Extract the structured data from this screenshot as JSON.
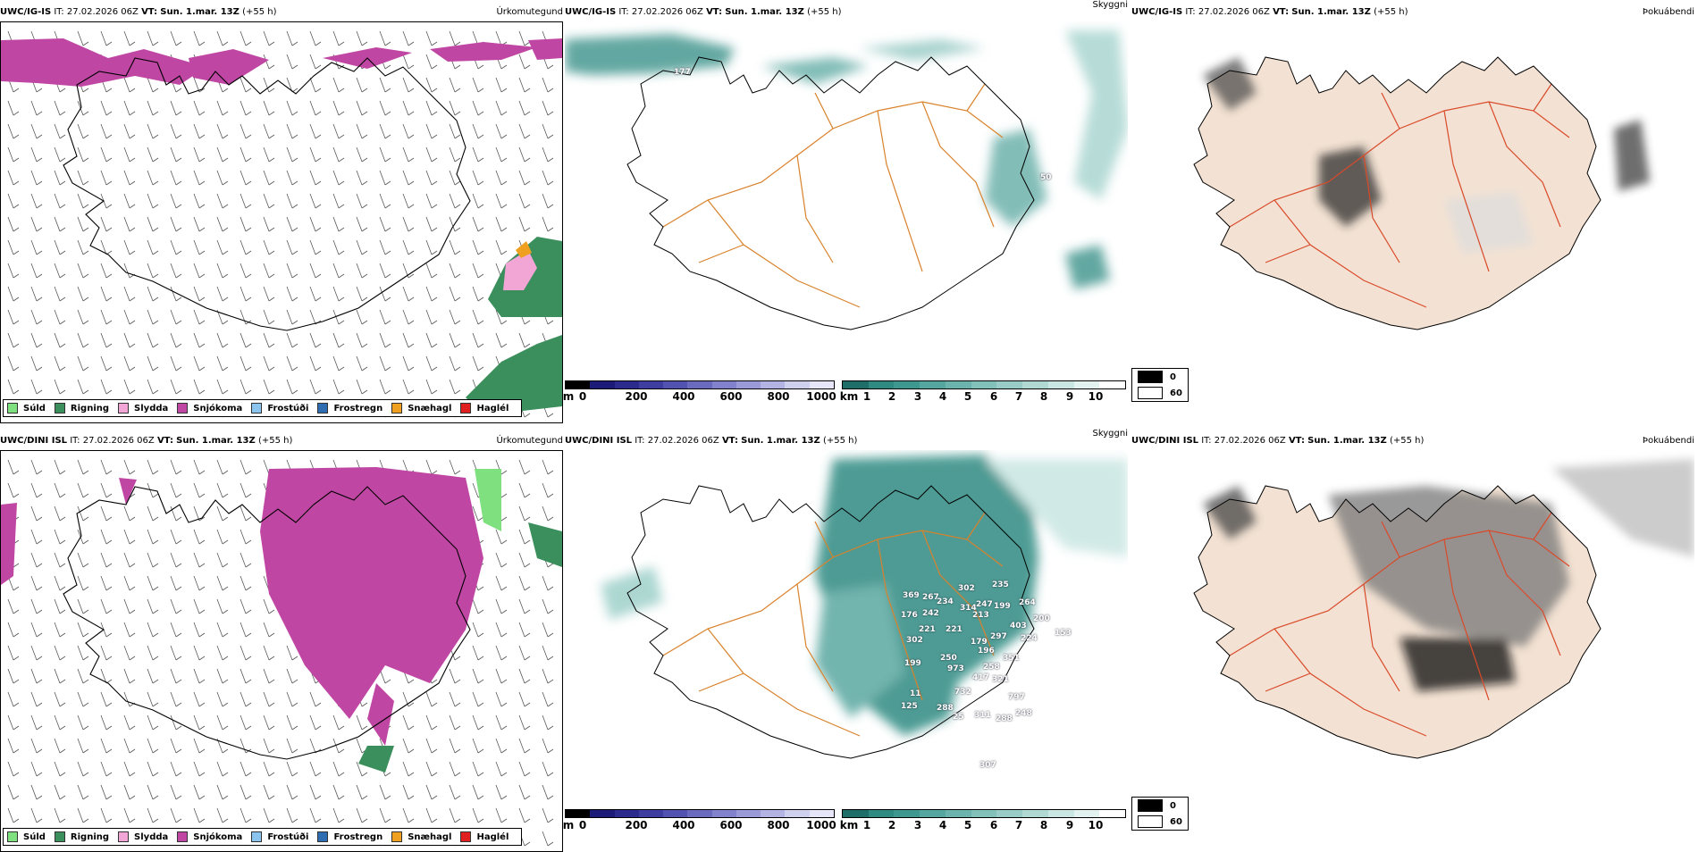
{
  "colors": {
    "sudd": "#7ee07e",
    "rigning": "#3a8f5c",
    "slydda": "#f2a6d6",
    "snjokoma": "#c046a4",
    "frostudi": "#8cc4f0",
    "frostregn": "#2f6db3",
    "snaehagl": "#f0a020",
    "hagel": "#e02020",
    "land_tan": "#f3e2d3",
    "roads_orange": "#d9822b",
    "roads_red": "#d94a2a",
    "rivers_blue": "#6f8ee8",
    "teal": "#2f8a82"
  },
  "rows": [
    {
      "model": "UWC/IG-IS",
      "it": "IT: 27.02.2026 06Z",
      "vt_label": "VT:",
      "vt_value": "Sun. 1.mar. 13Z",
      "lead": "(+55 h)",
      "panels": [
        "Úrkomutegund",
        "Skyggni",
        "Þokuábendi"
      ],
      "labels": [
        {
          "v": "177"
        },
        {
          "v": "50"
        }
      ]
    },
    {
      "model": "UWC/DINI ISL",
      "it": "IT: 27.02.2026 06Z",
      "vt_label": "VT:",
      "vt_value": "Sun. 1.mar. 13Z",
      "lead": "(+55 h)",
      "panels": [
        "Úrkomutegund",
        "Skyggni",
        "Þokuábendi"
      ],
      "labels": [
        {
          "v": "369"
        },
        {
          "v": "267"
        },
        {
          "v": "234"
        },
        {
          "v": "302"
        },
        {
          "v": "235"
        },
        {
          "v": "264"
        },
        {
          "v": "176"
        },
        {
          "v": "242"
        },
        {
          "v": "314"
        },
        {
          "v": "247"
        },
        {
          "v": "199"
        },
        {
          "v": "213"
        },
        {
          "v": "221"
        },
        {
          "v": "221"
        },
        {
          "v": "403"
        },
        {
          "v": "200"
        },
        {
          "v": "302"
        },
        {
          "v": "179"
        },
        {
          "v": "297"
        },
        {
          "v": "224"
        },
        {
          "v": "153"
        },
        {
          "v": "199"
        },
        {
          "v": "250"
        },
        {
          "v": "196"
        },
        {
          "v": "351"
        },
        {
          "v": "973"
        },
        {
          "v": "258"
        },
        {
          "v": "417"
        },
        {
          "v": "321"
        },
        {
          "v": "11"
        },
        {
          "v": "732"
        },
        {
          "v": "797"
        },
        {
          "v": "125"
        },
        {
          "v": "288"
        },
        {
          "v": "25"
        },
        {
          "v": "311"
        },
        {
          "v": "288"
        },
        {
          "v": "248"
        },
        {
          "v": "307"
        }
      ]
    }
  ],
  "legend": [
    "Súld",
    "Rigning",
    "Slydda",
    "Snjókoma",
    "Frostúði",
    "Frostregn",
    "Snæhagl",
    "Haglél"
  ],
  "ceiling_bar": {
    "unit": "m",
    "ticks": [
      "0",
      "200",
      "400",
      "600",
      "800",
      "1000"
    ]
  },
  "visibility_bar": {
    "unit": "km",
    "ticks": [
      "1",
      "2",
      "3",
      "4",
      "5",
      "6",
      "7",
      "8",
      "9",
      "10"
    ]
  },
  "cloud_key": [
    "0",
    "60"
  ]
}
